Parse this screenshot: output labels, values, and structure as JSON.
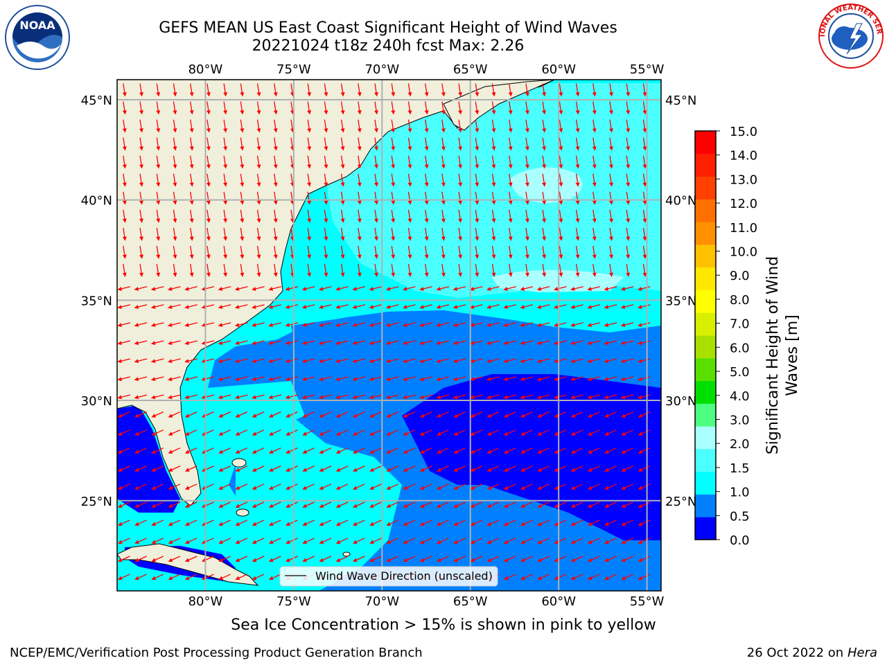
{
  "header": {
    "title_line1": "GEFS MEAN US East Coast Significant Height of Wind Waves",
    "title_line2": "20221024 t18z 240h fcst   Max: 2.26"
  },
  "logos": {
    "left": "noaa-logo",
    "right": "nws-logo",
    "left_text": "NOAA",
    "right_text": "NATIONAL WEATHER SERVICE"
  },
  "map": {
    "lon_labels": [
      "80°W",
      "75°W",
      "70°W",
      "65°W",
      "60°W",
      "55°W"
    ],
    "lat_labels": [
      "45°N",
      "40°N",
      "35°N",
      "30°N",
      "25°N"
    ],
    "lon_range": [
      -85,
      -54.2
    ],
    "lat_range": [
      20.5,
      46
    ],
    "legend_label": "Wind Wave Direction (unscaled)",
    "arrow_color": "#ff0000"
  },
  "colorbar": {
    "label": "Significant Height of Wind Waves [m]",
    "ticks": [
      "15.0",
      "14.0",
      "13.0",
      "12.0",
      "11.0",
      "10.0",
      "9.0",
      "8.0",
      "7.0",
      "6.0",
      "5.0",
      "4.0",
      "3.0",
      "2.0",
      "1.5",
      "1.0",
      "0.5",
      "0.0"
    ],
    "colors": [
      "#0000ff",
      "#0080ff",
      "#00ffff",
      "#4cffff",
      "#aaffff",
      "#4dff80",
      "#00e000",
      "#5ae000",
      "#aae000",
      "#d8f000",
      "#ffff00",
      "#ffe800",
      "#ffc000",
      "#ff9000",
      "#ff7000",
      "#ff4000",
      "#ff2000",
      "#ff0000"
    ]
  },
  "palette": {
    "land": "#efefdc",
    "grid": "#b0b0b0",
    "wave_0_05": "#0000ff",
    "wave_05_1": "#0080ff",
    "wave_1_15": "#00ffff",
    "wave_15_2": "#4cffff",
    "wave_2_3": "#aaffff"
  },
  "caption": "Sea Ice Concentration > 15% is shown in pink to yellow",
  "footer": {
    "left": "NCEP/EMC/Verification Post Processing Product Generation Branch",
    "right_prefix": "26 Oct 2022 on ",
    "right_host": "Hera"
  }
}
